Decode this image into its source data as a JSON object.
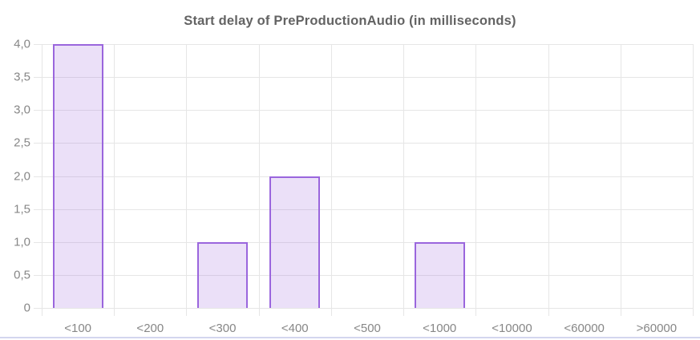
{
  "chart_data": {
    "type": "bar",
    "title": "Start delay of PreProductionAudio (in milliseconds)",
    "categories": [
      "<100",
      "<200",
      "<300",
      "<400",
      "<500",
      "<1000",
      "<10000",
      "<60000",
      ">60000"
    ],
    "values": [
      4,
      0,
      1,
      2,
      0,
      1,
      0,
      0,
      0
    ],
    "xlabel": "",
    "ylabel": "",
    "ylim": [
      0,
      4
    ],
    "ytick_labels": [
      "0",
      "0,5",
      "1,0",
      "1,5",
      "2,0",
      "2,5",
      "3,0",
      "3,5",
      "4,0"
    ],
    "ytick_values": [
      0,
      0.5,
      1,
      1.5,
      2,
      2.5,
      3,
      3.5,
      4
    ],
    "grid": true,
    "legend": false,
    "colors": {
      "bar_fill": "rgba(154,102,221,0.2)",
      "bar_border": "#9a66dd",
      "grid": "#e6e6e6",
      "tick_label": "#878787",
      "title": "#636363",
      "bottom_divider": "#d3d6ef"
    }
  }
}
